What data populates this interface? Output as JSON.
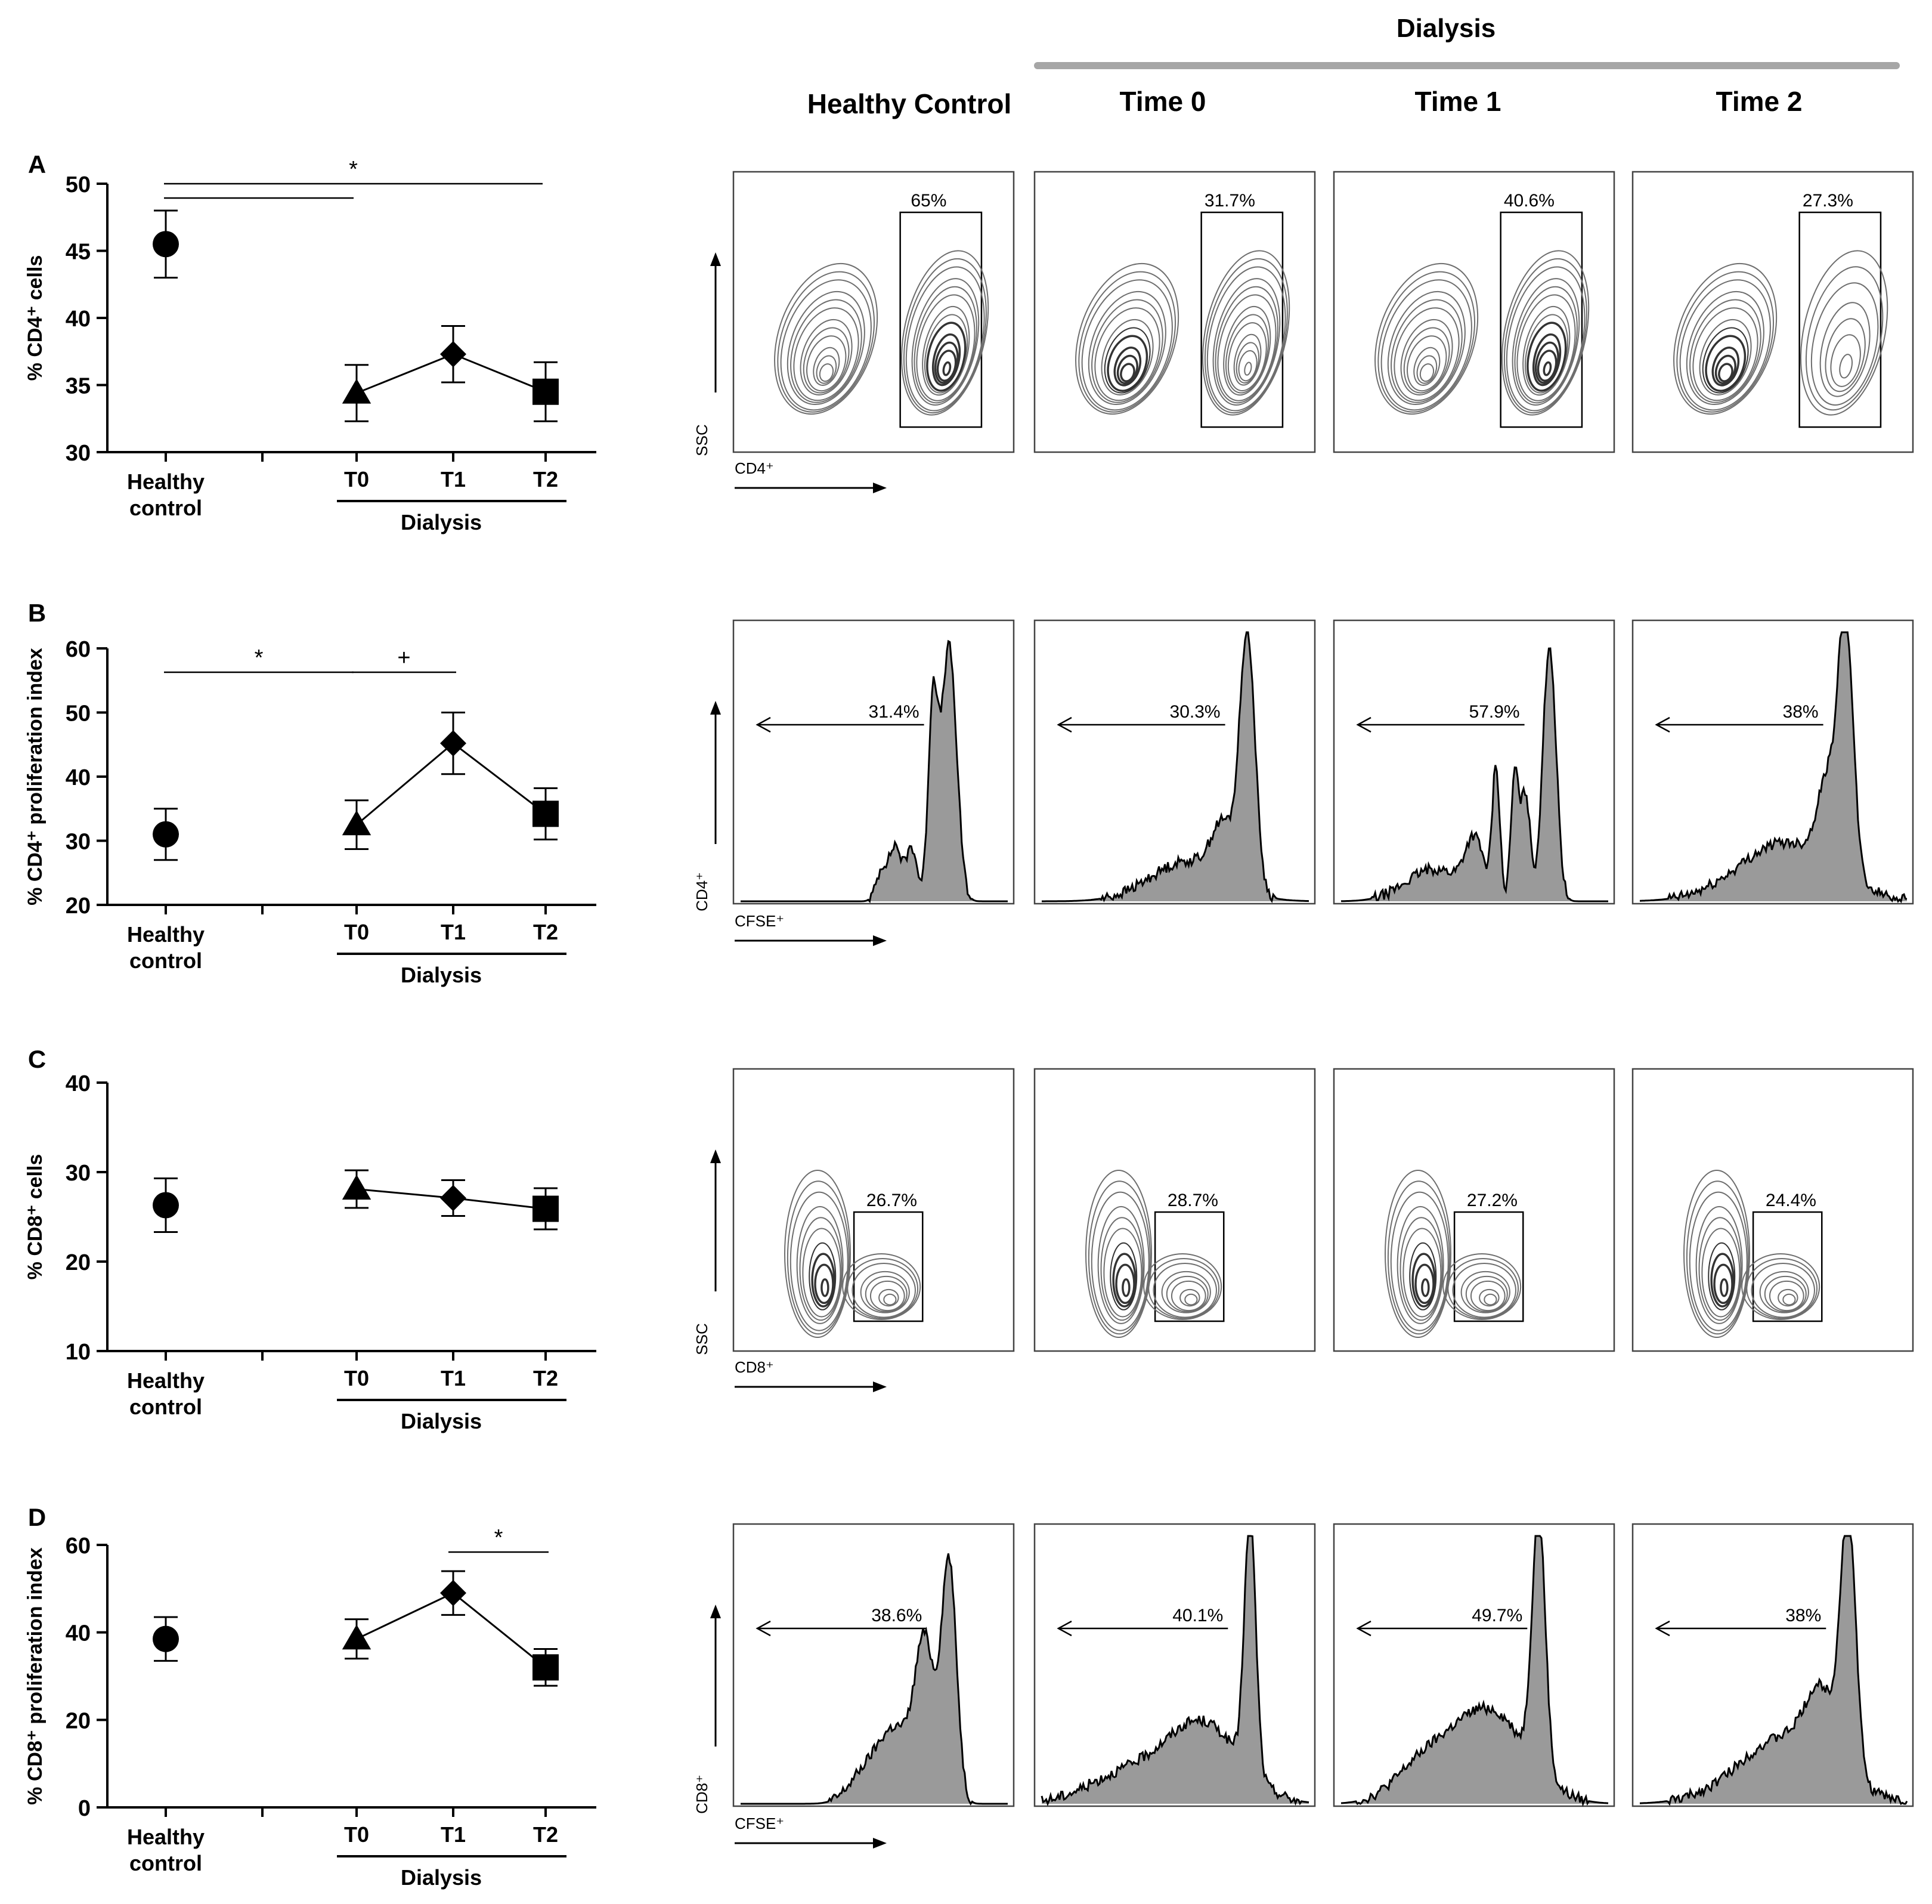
{
  "figure": {
    "header": {
      "dialysis_label": "Dialysis"
    },
    "columns": [
      "Healthy Control",
      "Time 0",
      "Time 1",
      "Time 2"
    ],
    "gray_line_color": "#a6a6a6",
    "hist_fill_color": "#9a9a9a"
  },
  "chart_data": [
    {
      "panel": "A",
      "type": "scatter",
      "ylabel": "% CD4⁺ cells",
      "ylim": [
        30,
        50
      ],
      "yticks": [
        "30",
        "35",
        "40",
        "45",
        "50"
      ],
      "categories": [
        "Healthy\ncontrol",
        "T0",
        "T1",
        "T2"
      ],
      "group_label": "Dialysis",
      "series": [
        {
          "name": "Healthy control",
          "marker": "circle",
          "x": [
            0
          ],
          "values": [
            45.5
          ],
          "err": [
            2.5
          ]
        },
        {
          "name": "Dialysis",
          "marker": [
            "triangle",
            "diamond",
            "square"
          ],
          "x": [
            1,
            2,
            3
          ],
          "values": [
            34.4,
            37.3,
            34.5
          ],
          "err": [
            2.1,
            2.1,
            2.2
          ],
          "connected": true
        }
      ],
      "significance": [
        {
          "from": 0,
          "to": 3,
          "label": "*"
        },
        {
          "from": 0,
          "to": 1,
          "label": ""
        }
      ]
    },
    {
      "panel": "B",
      "type": "scatter",
      "ylabel": "% CD4⁺ proliferation index",
      "ylim": [
        20,
        60
      ],
      "yticks": [
        "20",
        "30",
        "40",
        "50",
        "60"
      ],
      "categories": [
        "Healthy\ncontrol",
        "T0",
        "T1",
        "T2"
      ],
      "group_label": "Dialysis",
      "series": [
        {
          "name": "Healthy control",
          "marker": "circle",
          "x": [
            0
          ],
          "values": [
            31
          ],
          "err": [
            4
          ]
        },
        {
          "name": "Dialysis",
          "marker": [
            "triangle",
            "diamond",
            "square"
          ],
          "x": [
            1,
            2,
            3
          ],
          "values": [
            32.5,
            45.2,
            34.2
          ],
          "err": [
            3.8,
            4.8,
            4
          ],
          "connected": true
        }
      ],
      "significance": [
        {
          "from": 0,
          "to": 1,
          "label": "*"
        },
        {
          "from": 1,
          "to": 2,
          "label": "+"
        }
      ]
    },
    {
      "panel": "C",
      "type": "scatter",
      "ylabel": "% CD8⁺ cells",
      "ylim": [
        10,
        40
      ],
      "yticks": [
        "10",
        "20",
        "30",
        "40"
      ],
      "categories": [
        "Healthy\ncontrol",
        "T0",
        "T1",
        "T2"
      ],
      "group_label": "Dialysis",
      "series": [
        {
          "name": "Healthy control",
          "marker": "circle",
          "x": [
            0
          ],
          "values": [
            26.3
          ],
          "err": [
            3
          ]
        },
        {
          "name": "Dialysis",
          "marker": [
            "triangle",
            "diamond",
            "square"
          ],
          "x": [
            1,
            2,
            3
          ],
          "values": [
            28.1,
            27.1,
            25.9
          ],
          "err": [
            2.1,
            2,
            2.3
          ],
          "connected": true
        }
      ],
      "significance": []
    },
    {
      "panel": "D",
      "type": "scatter",
      "ylabel": "% CD8⁺ proliferation index",
      "ylim": [
        0,
        60
      ],
      "yticks": [
        "0",
        "20",
        "40",
        "60"
      ],
      "categories": [
        "Healthy\ncontrol",
        "T0",
        "T1",
        "T2"
      ],
      "group_label": "Dialysis",
      "series": [
        {
          "name": "Healthy control",
          "marker": "circle",
          "x": [
            0
          ],
          "values": [
            38.5
          ],
          "err": [
            5
          ]
        },
        {
          "name": "Dialysis",
          "marker": [
            "triangle",
            "diamond",
            "square"
          ],
          "x": [
            1,
            2,
            3
          ],
          "values": [
            38.5,
            49,
            32
          ],
          "err": [
            4.5,
            5,
            4.2
          ],
          "connected": true
        }
      ],
      "significance": [
        {
          "from": 2,
          "to": 3,
          "label": "*"
        }
      ]
    },
    {
      "panel": "A-flow",
      "type": "contour",
      "x_axis_label": "CD4⁺",
      "y_axis_label": "SSC",
      "gate_percentages": [
        "65%",
        "31.7%",
        "40.6%",
        "27.3%"
      ]
    },
    {
      "panel": "B-flow",
      "type": "histogram",
      "x_axis_label": "CFSE⁺",
      "y_axis_label": "CD4⁺",
      "gate_percentages": [
        "31.4%",
        "30.3%",
        "57.9%",
        "38%"
      ]
    },
    {
      "panel": "C-flow",
      "type": "contour",
      "x_axis_label": "CD8⁺",
      "y_axis_label": "SSC",
      "gate_percentages": [
        "26.7%",
        "28.7%",
        "27.2%",
        "24.4%"
      ]
    },
    {
      "panel": "D-flow",
      "type": "histogram",
      "x_axis_label": "CFSE⁺",
      "y_axis_label": "CD8⁺",
      "gate_percentages": [
        "38.6%",
        "40.1%",
        "49.7%",
        "38%"
      ]
    }
  ]
}
